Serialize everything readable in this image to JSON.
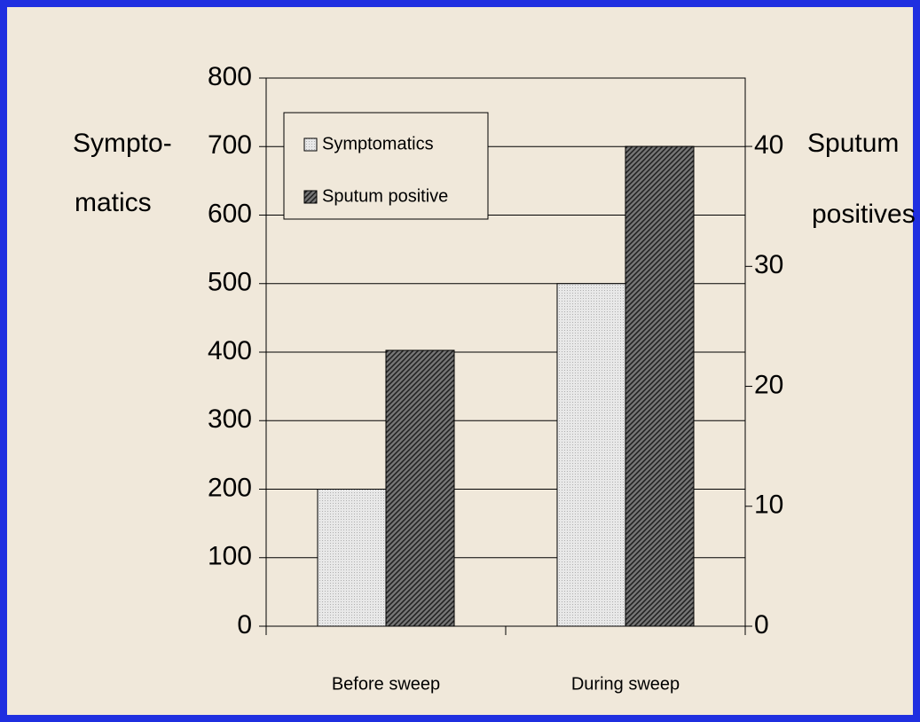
{
  "chart_data": {
    "type": "bar",
    "categories": [
      "Before sweep",
      "During sweep"
    ],
    "series": [
      {
        "name": "Symptomatics",
        "color": "#dcdcdc",
        "values": [
          200,
          500
        ]
      },
      {
        "name": "Sputum positive",
        "color": "#555555",
        "values": [
          23,
          40
        ],
        "axis": "y2"
      }
    ],
    "y_label": [
      "Sympto-",
      "matics"
    ],
    "y2_label": [
      "Sputum",
      "positives"
    ],
    "ylim": [
      0,
      800
    ],
    "yticks": [
      0,
      100,
      200,
      300,
      400,
      500,
      600,
      700,
      800
    ],
    "y2lim": [
      0,
      45.7
    ],
    "y2ticks": [
      0,
      10,
      20,
      30,
      40
    ],
    "grid": true,
    "legend": "upper left"
  }
}
